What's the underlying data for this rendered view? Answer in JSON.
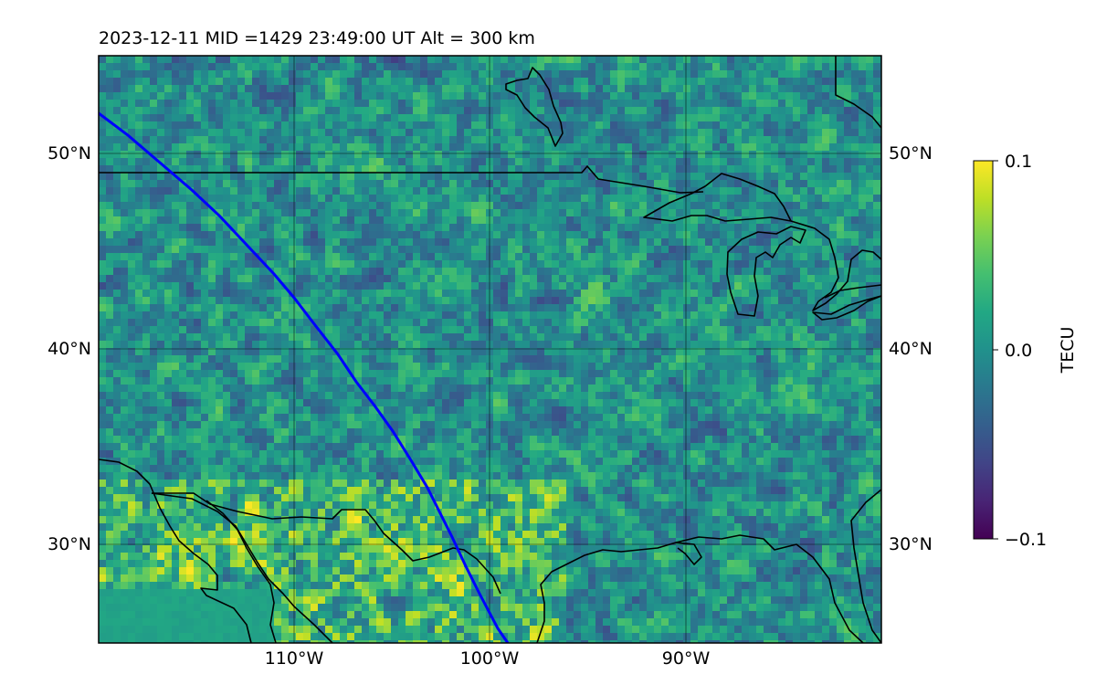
{
  "title": "2023-12-11  MID =1429    23:49:00  UT  Alt = 300 km",
  "map": {
    "lat_labels": [
      "50°N",
      "40°N",
      "30°N"
    ],
    "lon_labels": [
      "110°W",
      "100°W",
      "90°W"
    ],
    "lat_range": [
      25,
      55
    ],
    "lon_range": [
      -120,
      -80
    ],
    "gridlines": true,
    "colormap": "viridis",
    "track_color": "#0000ff",
    "coastline_color": "#000000"
  },
  "colorbar": {
    "label": "TECU",
    "max_label": "0.1",
    "mid_label": "0.0",
    "min_label": "−0.1",
    "range": [
      -0.1,
      0.1
    ]
  }
}
